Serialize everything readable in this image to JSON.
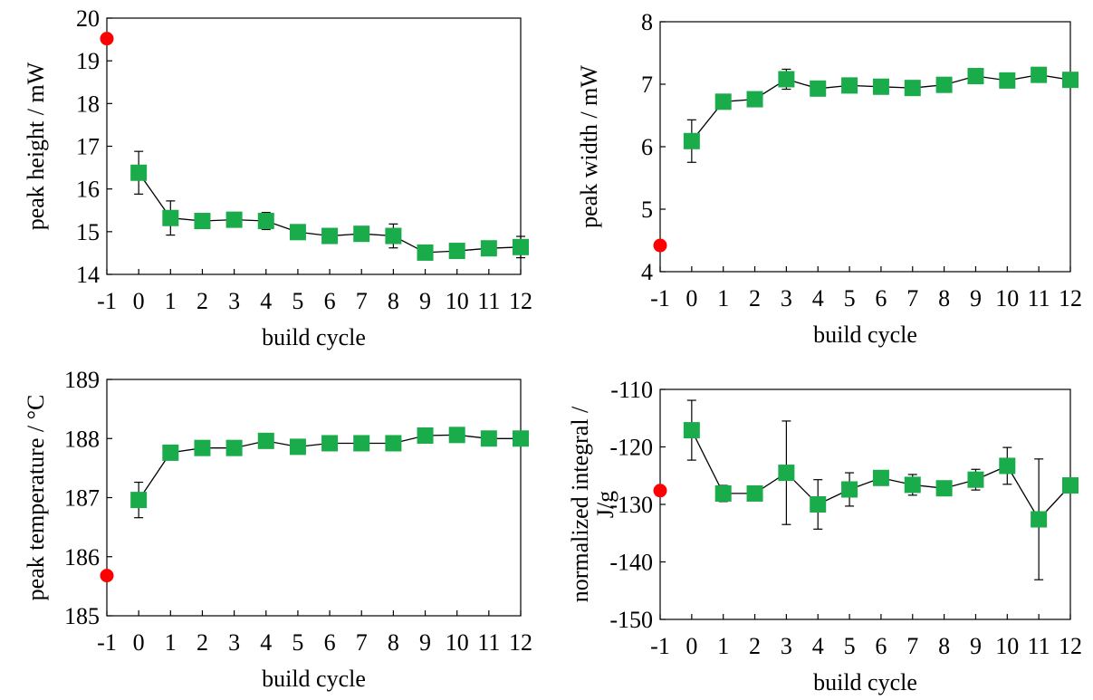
{
  "colors": {
    "series": "#1aab4a",
    "reference": "#ff0000",
    "axis": "#000000"
  },
  "chart_data": [
    {
      "type": "scatter",
      "xlabel": "build cycle",
      "ylabel": "peak height /  mW",
      "xticks": [
        "-1",
        "0",
        "1",
        "2",
        "3",
        "4",
        "5",
        "6",
        "7",
        "8",
        "9",
        "10",
        "11",
        "12"
      ],
      "yticks": [
        "14",
        "15",
        "16",
        "17",
        "18",
        "19",
        "20"
      ],
      "xlim": [
        -1,
        12
      ],
      "ylim": [
        14,
        20
      ],
      "reference": {
        "x": -1,
        "y": 19.52
      },
      "series": [
        {
          "x": [
            0,
            1,
            2,
            3,
            4,
            5,
            6,
            7,
            8,
            9,
            10,
            11,
            12
          ],
          "y": [
            16.38,
            15.32,
            15.25,
            15.28,
            15.25,
            14.99,
            14.9,
            14.95,
            14.9,
            14.51,
            14.55,
            14.61,
            14.64
          ],
          "err": [
            0.5,
            0.4,
            0.07,
            0.1,
            0.2,
            0.1,
            0.07,
            0.07,
            0.28,
            0.07,
            0.07,
            0.07,
            0.25
          ]
        }
      ]
    },
    {
      "type": "scatter",
      "xlabel": "build cycle",
      "ylabel": "peak width /  mW",
      "xticks": [
        "-1",
        "0",
        "1",
        "2",
        "3",
        "4",
        "5",
        "6",
        "7",
        "8",
        "9",
        "10",
        "11",
        "12"
      ],
      "yticks": [
        "4",
        "5",
        "6",
        "7",
        "8"
      ],
      "xlim": [
        -1,
        12
      ],
      "ylim": [
        4,
        8
      ],
      "reference": {
        "x": -1,
        "y": 4.42
      },
      "series": [
        {
          "x": [
            0,
            1,
            2,
            3,
            4,
            5,
            6,
            7,
            8,
            9,
            10,
            11,
            12
          ],
          "y": [
            6.09,
            6.72,
            6.76,
            7.08,
            6.93,
            6.98,
            6.96,
            6.94,
            6.99,
            7.13,
            7.06,
            7.15,
            7.07
          ],
          "err": [
            0.34,
            0.05,
            0.05,
            0.16,
            0.05,
            0.05,
            0.05,
            0.05,
            0.05,
            0.05,
            0.05,
            0.05,
            0.05
          ]
        }
      ]
    },
    {
      "type": "scatter",
      "xlabel": "build cycle",
      "ylabel": "peak temperature /  °C",
      "xticks": [
        "-1",
        "0",
        "1",
        "2",
        "3",
        "4",
        "5",
        "6",
        "7",
        "8",
        "9",
        "10",
        "11",
        "12"
      ],
      "yticks": [
        "185",
        "186",
        "187",
        "188",
        "189"
      ],
      "xlim": [
        -1,
        12
      ],
      "ylim": [
        185,
        189
      ],
      "reference": {
        "x": -1,
        "y": 185.68
      },
      "series": [
        {
          "x": [
            0,
            1,
            2,
            3,
            4,
            5,
            6,
            7,
            8,
            9,
            10,
            11,
            12
          ],
          "y": [
            186.96,
            187.76,
            187.84,
            187.84,
            187.96,
            187.86,
            187.92,
            187.92,
            187.92,
            188.05,
            188.06,
            188.0,
            188.0
          ],
          "err": [
            0.3,
            0.05,
            0.05,
            0.05,
            0.05,
            0.05,
            0.05,
            0.05,
            0.05,
            0.05,
            0.05,
            0.05,
            0.05
          ]
        }
      ]
    },
    {
      "type": "scatter",
      "xlabel": "build cycle",
      "ylabel": "normalized integral  /",
      "ylabel2": "J/g",
      "xticks": [
        "-1",
        "0",
        "1",
        "2",
        "3",
        "4",
        "5",
        "6",
        "7",
        "8",
        "9",
        "10",
        "11",
        "12"
      ],
      "yticks": [
        "-150",
        "-140",
        "-130",
        "-120",
        "-110"
      ],
      "xlim": [
        -1,
        12
      ],
      "ylim": [
        -150,
        -110
      ],
      "reference": {
        "x": -1,
        "y": -127.6
      },
      "series": [
        {
          "x": [
            0,
            1,
            2,
            3,
            4,
            5,
            6,
            7,
            8,
            9,
            10,
            11,
            12
          ],
          "y": [
            -117.1,
            -128.1,
            -128.1,
            -124.5,
            -130.0,
            -127.4,
            -125.4,
            -126.6,
            -127.2,
            -125.7,
            -123.3,
            -132.6,
            -126.7
          ],
          "err": [
            5.2,
            1.4,
            0.4,
            9.0,
            4.3,
            2.9,
            0.4,
            1.8,
            0.4,
            1.8,
            3.2,
            10.5,
            0.4
          ]
        }
      ]
    }
  ]
}
